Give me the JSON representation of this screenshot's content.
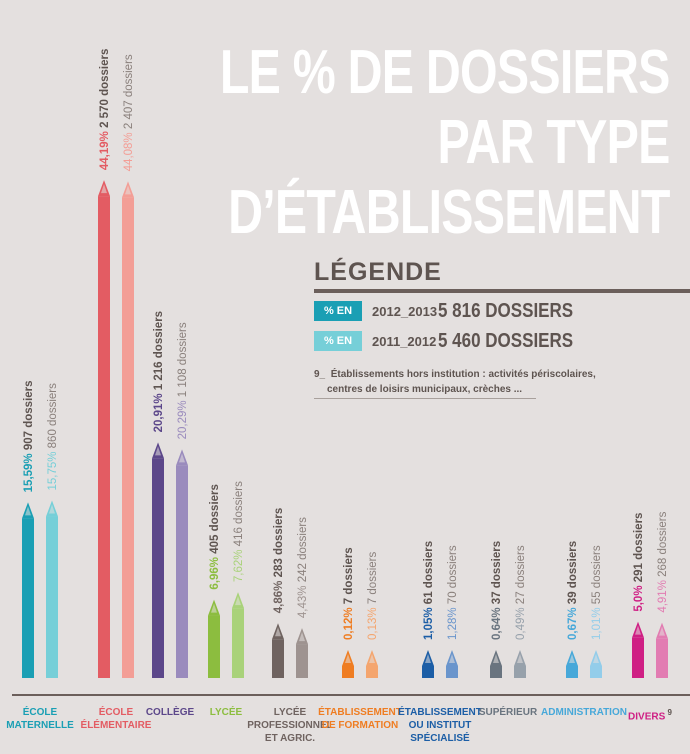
{
  "title": {
    "line1": "LE % DE DOSSIERS",
    "line2": "PAR TYPE",
    "line3": "D’ÉTABLISSEMENT"
  },
  "legend": {
    "heading": "LÉGENDE",
    "items": [
      {
        "chip": "% EN",
        "period": "2012_2013",
        "count": "5 816 DOSSIERS",
        "color": "#1a9fb4"
      },
      {
        "chip": "% EN",
        "period": "2011_2012",
        "count": "5 460 DOSSIERS",
        "color": "#76cfd8"
      }
    ],
    "note_number": "9_",
    "note_line1": "Établissements hors institution : activités périscolaires,",
    "note_line2": "centres de loisirs municipaux, crèches ..."
  },
  "chart_data": {
    "type": "bar",
    "title": "LE % DE DOSSIERS PAR TYPE D’ÉTABLISSEMENT",
    "categories": [
      "ÉCOLE MATERNELLE",
      "ÉCOLE ÉLÉMENTAIRE",
      "COLLÈGE",
      "LYCÉE",
      "LYCÉE PROFESSIONNEL ET AGRIC.",
      "ÉTABLISSEMENT DE FORMATION",
      "ÉTABLISSEMENT OU INSTITUT SPÉCIALISÉ",
      "SUPÉRIEUR",
      "ADMINISTRATION",
      "DIVERS"
    ],
    "category_lines": [
      [
        "ÉCOLE",
        "MATERNELLE"
      ],
      [
        "ÉCOLE",
        "ÉLÉMENTAIRE"
      ],
      [
        "COLLÈGE"
      ],
      [
        "LYCÉE"
      ],
      [
        "LYCÉE",
        "PROFESSIONNEL",
        "ET AGRIC."
      ],
      [
        "ÉTABLISSEMENT",
        "DE FORMATION"
      ],
      [
        "ÉTABLISSEMENT",
        "OU INSTITUT",
        "SPÉCIALISÉ"
      ],
      [
        "SUPÉRIEUR"
      ],
      [
        "ADMINISTRATION"
      ],
      [
        "DIVERS"
      ]
    ],
    "footnote_marks": [
      "",
      "",
      "",
      "",
      "",
      "",
      "",
      "",
      "",
      "9"
    ],
    "series": [
      {
        "name": "2012_2013",
        "values": [
          15.59,
          44.19,
          20.91,
          6.96,
          4.86,
          0.12,
          1.05,
          0.64,
          0.67,
          5.0
        ],
        "pct_labels": [
          "15,59%",
          "44,19%",
          "20,91%",
          "6,96%",
          "4,86%",
          "0,12%",
          "1,05%",
          "0,64%",
          "0,67%",
          "5,0%"
        ],
        "count_labels": [
          "907 dossiers",
          "2 570 dossiers",
          "1 216 dossiers",
          "405 dossiers",
          "283 dossiers",
          "7 dossiers",
          "61 dossiers",
          "37 dossiers",
          "39 dossiers",
          "291 dossiers"
        ]
      },
      {
        "name": "2011_2012",
        "values": [
          15.75,
          44.08,
          20.29,
          7.62,
          4.43,
          0.13,
          1.28,
          0.49,
          1.01,
          4.91
        ],
        "pct_labels": [
          "15,75%",
          "44,08%",
          "20,29%",
          "7,62%",
          "4,43%",
          "0,13%",
          "1,28%",
          "0,49%",
          "1,01%",
          "4,91%"
        ],
        "count_labels": [
          "860 dossiers",
          "2 407 dossiers",
          "1 108 dossiers",
          "416 dossiers",
          "242 dossiers",
          "7 dossiers",
          "70 dossiers",
          "27 dossiers",
          "55 dossiers",
          "268 dossiers"
        ]
      }
    ],
    "colors": [
      [
        "#1a9fb4",
        "#76cfd8"
      ],
      [
        "#e35c63",
        "#f39e96"
      ],
      [
        "#5c478a",
        "#9a8bbd"
      ],
      [
        "#8cbd3f",
        "#a9d27a"
      ],
      [
        "#6f6360",
        "#9e9390"
      ],
      [
        "#ef7d22",
        "#f4a56e"
      ],
      [
        "#1c5ea6",
        "#6a95cc"
      ],
      [
        "#69747f",
        "#97a1ab"
      ],
      [
        "#47a8d9",
        "#93cdea"
      ],
      [
        "#cf1f84",
        "#e27cb2"
      ]
    ],
    "label_colors": [
      "#1a9fb4",
      "#e35c63",
      "#5c478a",
      "#8cbd3f",
      "#6f6360",
      "#ef7d22",
      "#1c5ea6",
      "#69747f",
      "#47a8d9",
      "#cf1f84"
    ],
    "ylim": [
      0,
      45
    ],
    "grid": false,
    "legend_position": "top-right"
  }
}
